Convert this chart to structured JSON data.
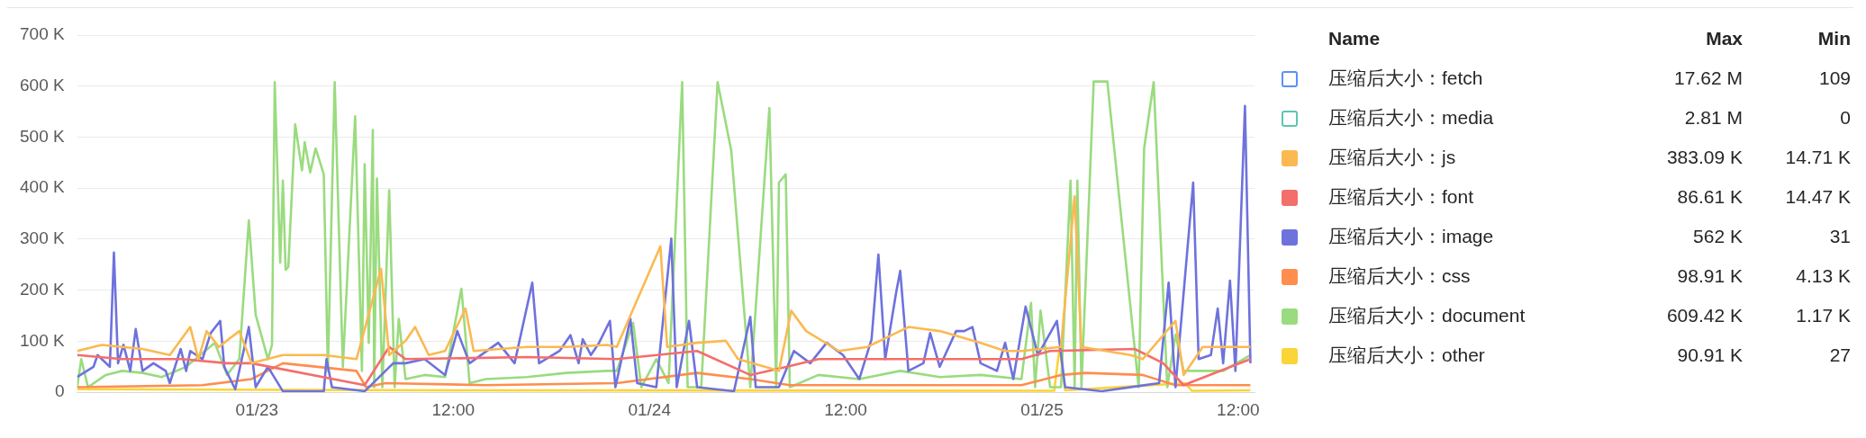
{
  "chart_data": {
    "type": "line",
    "grid": "y",
    "legend": "right",
    "marker": "none",
    "line_style": "solid",
    "xlim": [
      "--01-22T13:00",
      "--01-25T13:00"
    ],
    "xticks": [
      {
        "value": "--01-23T00:00",
        "label": "01/23"
      },
      {
        "value": "--01-23T12:00",
        "label": "12:00"
      },
      {
        "value": "--01-24T00:00",
        "label": "01/24"
      },
      {
        "value": "--01-24T12:00",
        "label": "12:00"
      },
      {
        "value": "--01-25T00:00",
        "label": "01/25"
      },
      {
        "value": "--01-25T12:00",
        "label": "12:00"
      }
    ],
    "ylim": [
      0,
      700
    ],
    "yticks": [
      {
        "value": 0,
        "label": "0"
      },
      {
        "value": 100,
        "label": "100 K"
      },
      {
        "value": 200,
        "label": "200 K"
      },
      {
        "value": 300,
        "label": "300 K"
      },
      {
        "value": 400,
        "label": "400 K"
      },
      {
        "value": 500,
        "label": "500 K"
      },
      {
        "value": 600,
        "label": "600 K"
      },
      {
        "value": 700,
        "label": "700 K"
      }
    ],
    "annotations": [
      "Name",
      "Max",
      "Min",
      "17.62 M",
      "109",
      "2.81 M",
      "0",
      "383.09 K",
      "14.71 K",
      "86.61 K",
      "14.47 K",
      "562 K",
      "31",
      "98.91 K",
      "4.13 K",
      "609.42 K",
      "1.17 K",
      "90.91 K",
      "27"
    ],
    "series": [
      {
        "name": "压缩后大小：fetch",
        "color": "#5b8ff9"
      },
      {
        "name": "压缩后大小：media",
        "color": "#5dc5b0"
      },
      {
        "name": "压缩后大小：js",
        "color": "#fbb951",
        "x": [
          "--01-22T13:00",
          "--01-22T14:30",
          "--01-22T17:00",
          "--01-22T18:40",
          "--01-22T19:55",
          "--01-22T20:25",
          "--01-22T20:55",
          "--01-22T21:40",
          "--01-22T22:55",
          "--01-22T23:40",
          "--01-23T01:35",
          "--01-23T04:05",
          "--01-23T06:05",
          "--01-23T07:35",
          "--01-23T08:05",
          "--01-23T09:05",
          "--01-23T09:40",
          "--01-23T10:30",
          "--01-23T11:30",
          "--01-23T12:45",
          "--01-23T13:15",
          "--01-23T16:30",
          "--01-23T18:55",
          "--01-23T21:25",
          "--01-23T22:00",
          "--01-24T00:40",
          "--01-24T01:05",
          "--01-24T02:55",
          "--01-24T04:40",
          "--01-24T05:25",
          "--01-24T07:55",
          "--01-24T08:40",
          "--01-24T09:35",
          "--01-24T11:35",
          "--01-24T13:20",
          "--01-24T15:50",
          "--01-24T17:45",
          "--01-24T20:15",
          "--01-24T21:45",
          "--01-24T22:45",
          "--01-25T01:10",
          "--01-25T02:00",
          "--01-25T02:25",
          "--01-25T05:25",
          "--01-25T06:10",
          "--01-25T08:10",
          "--01-25T08:40",
          "--01-25T09:50",
          "--01-25T12:45"
        ],
        "values": [
          81,
          93,
          85,
          73,
          128,
          65,
          120,
          89,
          120,
          57,
          73,
          73,
          65,
          242,
          73,
          101,
          128,
          73,
          81,
          164,
          81,
          89,
          89,
          93,
          89,
          286,
          89,
          97,
          101,
          65,
          42,
          160,
          120,
          81,
          89,
          128,
          120,
          97,
          81,
          81,
          89,
          384,
          89,
          73,
          65,
          140,
          34,
          89,
          89
        ]
      },
      {
        "name": "压缩后大小：font",
        "color": "#f46e6c",
        "x": [
          "--01-22T13:00",
          "--01-22T15:45",
          "--01-22T19:25",
          "--01-22T22:10",
          "--01-22T23:40",
          "--01-23T06:35",
          "--01-23T08:05",
          "--01-23T09:05",
          "--01-23T16:30",
          "--01-23T22:00",
          "--01-24T02:55",
          "--01-24T06:10",
          "--01-24T08:25",
          "--01-24T10:20",
          "--01-24T22:45",
          "--01-25T00:30",
          "--01-25T05:40",
          "--01-25T07:25",
          "--01-25T08:40",
          "--01-25T12:45"
        ],
        "values": [
          73,
          65,
          65,
          57,
          57,
          14,
          89,
          65,
          69,
          65,
          81,
          34,
          50,
          65,
          65,
          81,
          85,
          57,
          14,
          65
        ]
      },
      {
        "name": "压缩后大小：image",
        "color": "#6e72dd",
        "x": [
          "--01-22T13:00",
          "--01-22T14:00",
          "--01-22T14:15",
          "--01-22T15:00",
          "--01-22T15:15",
          "--01-22T15:30",
          "--01-22T15:50",
          "--01-22T16:15",
          "--01-22T16:35",
          "--01-22T17:00",
          "--01-22T17:40",
          "--01-22T18:25",
          "--01-22T18:40",
          "--01-22T19:20",
          "--01-22T19:40",
          "--01-22T19:55",
          "--01-22T20:40",
          "--01-22T21:10",
          "--01-22T21:45",
          "--01-22T22:00",
          "--01-22T22:40",
          "--01-22T23:30",
          "--01-22T23:55",
          "--01-23T00:40",
          "--01-23T01:35",
          "--01-23T04:05",
          "--01-23T04:15",
          "--01-23T04:35",
          "--01-23T06:35",
          "--01-23T08:20",
          "--01-23T09:05",
          "--01-23T10:15",
          "--01-23T11:30",
          "--01-23T12:15",
          "--01-23T13:00",
          "--01-23T14:45",
          "--01-23T15:45",
          "--01-23T16:50",
          "--01-23T17:15",
          "--01-23T18:30",
          "--01-23T19:10",
          "--01-23T19:40",
          "--01-23T19:55",
          "--01-23T20:25",
          "--01-23T20:55",
          "--01-23T21:35",
          "--01-23T21:55",
          "--01-23T22:50",
          "--01-23T23:15",
          "--01-24T00:25",
          "--01-24T01:20",
          "--01-24T01:40",
          "--01-24T02:25",
          "--01-24T02:55",
          "--01-24T05:10",
          "--01-24T06:10",
          "--01-24T06:30",
          "--01-24T07:55",
          "--01-24T08:50",
          "--01-24T09:50",
          "--01-24T10:50",
          "--01-24T11:50",
          "--01-24T12:50",
          "--01-24T13:35",
          "--01-24T14:00",
          "--01-24T14:25",
          "--01-24T15:05",
          "--01-24T15:20",
          "--01-24T15:50",
          "--01-24T16:45",
          "--01-24T17:10",
          "--01-24T17:45",
          "--01-24T18:45",
          "--01-24T19:15",
          "--01-24T19:45",
          "--01-24T20:15",
          "--01-24T21:15",
          "--01-24T21:45",
          "--01-24T22:15",
          "--01-24T23:00",
          "--01-24T23:45",
          "--01-25T00:55",
          "--01-25T01:25",
          "--01-25T03:40",
          "--01-25T07:10",
          "--01-25T07:45",
          "--01-25T08:10",
          "--01-25T09:15",
          "--01-25T09:35",
          "--01-25T10:20",
          "--01-25T10:45",
          "--01-25T11:05",
          "--01-25T11:30",
          "--01-25T11:50",
          "--01-25T12:25",
          "--01-25T12:45"
        ],
        "values": [
          30,
          50,
          73,
          50,
          274,
          57,
          93,
          42,
          124,
          42,
          57,
          42,
          18,
          85,
          42,
          81,
          65,
          116,
          140,
          50,
          6,
          128,
          10,
          50,
          2,
          2,
          65,
          10,
          2,
          57,
          57,
          65,
          34,
          120,
          57,
          97,
          57,
          215,
          57,
          81,
          112,
          57,
          104,
          73,
          97,
          140,
          10,
          144,
          18,
          10,
          301,
          10,
          140,
          10,
          2,
          148,
          10,
          10,
          81,
          57,
          97,
          73,
          26,
          104,
          270,
          65,
          195,
          238,
          42,
          57,
          116,
          50,
          120,
          120,
          128,
          57,
          42,
          97,
          26,
          168,
          73,
          140,
          10,
          2,
          18,
          215,
          10,
          411,
          65,
          73,
          164,
          57,
          219,
          42,
          561,
          57
        ]
      },
      {
        "name": "压缩后大小：css",
        "color": "#ff8d4e",
        "x": [
          "--01-22T13:00",
          "--01-22T20:40",
          "--01-22T23:40",
          "--01-23T01:35",
          "--01-23T06:05",
          "--01-23T06:40",
          "--01-23T07:50",
          "--01-23T14:00",
          "--01-23T22:00",
          "--01-24T02:55",
          "--01-24T06:10",
          "--01-24T08:35",
          "--01-24T22:45",
          "--01-25T01:10",
          "--01-25T02:40",
          "--01-25T06:10",
          "--01-25T08:10",
          "--01-25T12:45"
        ],
        "values": [
          10,
          14,
          26,
          57,
          42,
          10,
          18,
          14,
          18,
          38,
          26,
          14,
          14,
          34,
          38,
          34,
          14,
          14
        ]
      },
      {
        "name": "压缩后大小：document",
        "color": "#9adb7f",
        "x": [
          "--01-22T13:00",
          "--01-22T13:15",
          "--01-22T13:40",
          "--01-22T14:45",
          "--01-22T15:45",
          "--01-22T17:00",
          "--01-22T18:10",
          "--01-22T19:40",
          "--01-22T21:25",
          "--01-22T22:10",
          "--01-22T22:55",
          "--01-22T23:30",
          "--01-22T23:55",
          "--01-23T00:40",
          "--01-23T00:55",
          "--01-23T01:05",
          "--01-23T01:25",
          "--01-23T01:35",
          "--01-23T01:45",
          "--01-23T01:55",
          "--01-23T02:20",
          "--01-23T02:45",
          "--01-23T02:55",
          "--01-23T03:15",
          "--01-23T03:35",
          "--01-23T04:05",
          "--01-23T04:20",
          "--01-23T04:45",
          "--01-23T05:15",
          "--01-23T06:00",
          "--01-23T06:25",
          "--01-23T06:35",
          "--01-23T06:50",
          "--01-23T07:05",
          "--01-23T07:10",
          "--01-23T07:20",
          "--01-23T07:40",
          "--01-23T08:05",
          "--01-23T08:25",
          "--01-23T08:40",
          "--01-23T09:05",
          "--01-23T10:15",
          "--01-23T11:30",
          "--01-23T12:30",
          "--01-23T13:00",
          "--01-23T14:00",
          "--01-23T16:30",
          "--01-23T18:55",
          "--01-23T21:25",
          "--01-23T22:00",
          "--01-23T23:00",
          "--01-23T23:30",
          "--01-24T00:25",
          "--01-24T01:10",
          "--01-24T02:00",
          "--01-24T02:20",
          "--01-24T03:10",
          "--01-24T04:10",
          "--01-24T05:00",
          "--01-24T06:10",
          "--01-24T07:20",
          "--01-24T07:45",
          "--01-24T07:55",
          "--01-24T08:20",
          "--01-24T08:35",
          "--01-24T10:20",
          "--01-24T12:50",
          "--01-24T15:20",
          "--01-24T17:45",
          "--01-24T20:15",
          "--01-24T22:45",
          "--01-24T23:20",
          "--01-24T23:35",
          "--01-24T23:55",
          "--01-25T00:30",
          "--01-25T01:10",
          "--01-25T01:45",
          "--01-25T02:00",
          "--01-25T02:10",
          "--01-25T02:25",
          "--01-25T03:10",
          "--01-25T04:00",
          "--01-25T05:55",
          "--01-25T06:15",
          "--01-25T06:50",
          "--01-25T07:40",
          "--01-25T08:10",
          "--01-25T08:40",
          "--01-25T11:05",
          "--01-25T12:45"
        ],
        "values": [
          10,
          65,
          10,
          34,
          42,
          38,
          30,
          50,
          97,
          34,
          65,
          337,
          152,
          65,
          93,
          608,
          254,
          415,
          240,
          246,
          525,
          435,
          490,
          431,
          478,
          427,
          42,
          608,
          50,
          541,
          42,
          447,
          97,
          514,
          10,
          419,
          10,
          396,
          10,
          144,
          26,
          34,
          30,
          203,
          18,
          26,
          30,
          38,
          42,
          42,
          136,
          10,
          65,
          18,
          608,
          10,
          10,
          608,
          474,
          10,
          557,
          10,
          411,
          427,
          10,
          34,
          26,
          42,
          30,
          34,
          26,
          175,
          10,
          160,
          10,
          10,
          415,
          10,
          415,
          10,
          609,
          609,
          10,
          478,
          608,
          10,
          113,
          42,
          42,
          73
        ]
      },
      {
        "name": "压缩后大小：other",
        "color": "#fbd437",
        "x": [
          "--01-22T13:00",
          "--01-23T12:00",
          "--01-25T00:45",
          "--01-25T01:05",
          "--01-25T01:25",
          "--01-25T08:45",
          "--01-25T09:10",
          "--01-25T12:45"
        ],
        "values": [
          6,
          4,
          3,
          89,
          4,
          18,
          3,
          4
        ]
      }
    ]
  }
}
